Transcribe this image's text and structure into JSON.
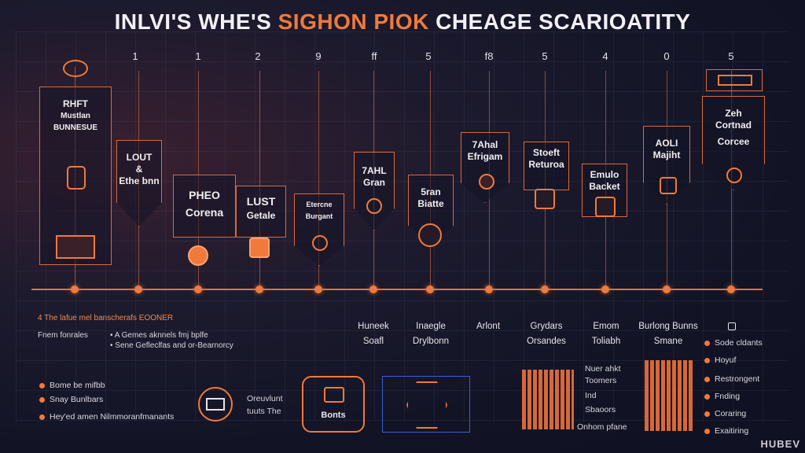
{
  "title": {
    "part1": "INLVI'S WHE'S ",
    "highlight": "SIGHON PIOK",
    "part2": " CHEAGE SCARIOATITY"
  },
  "timeline": {
    "numbers": [
      "1",
      "1",
      "2",
      "9",
      "ff",
      "5",
      "f8",
      "5",
      "4",
      "0",
      "5"
    ],
    "cards": [
      {
        "line1": "RHFT",
        "line2": "Mustlan",
        "line3": "BUNNESUE"
      },
      {
        "line1": "LOUT",
        "line2": "&",
        "line3": "Ethe bnn"
      },
      {
        "line1": "PHEO",
        "line2": "Corena"
      },
      {
        "line1": "LUST",
        "line2": "Getale"
      },
      {
        "line1": "Etercne",
        "line2": "Burgant"
      },
      {
        "line1": "7AHL",
        "line2": "Gran"
      },
      {
        "line1": "5ran",
        "line2": "Biatte"
      },
      {
        "line1": "7Ahal",
        "line2": "Efrigam"
      },
      {
        "line1": "Stoeft",
        "line2": "Returoa"
      },
      {
        "line1": "Emulo",
        "line2": "Backet"
      },
      {
        "line1": "AOLI",
        "line2": "Majiht"
      },
      {
        "line1": "Zeh",
        "line2": "Cortnad",
        "line3": "Corcee"
      }
    ],
    "below_labels": [
      {
        "line1": "Huneek",
        "line2": "Soafl"
      },
      {
        "line1": "Inaegle",
        "line2": "Drylbonn"
      },
      {
        "line1": "Arlont",
        "line2": ""
      },
      {
        "line1": "Grydars",
        "line2": "Orsandes"
      },
      {
        "line1": "Emom",
        "line2": "Toliabh"
      },
      {
        "line1": "Burlong Bunns",
        "line2": "Smane"
      }
    ]
  },
  "notes": {
    "header": "4 The lafue mel banscherafs EOONER",
    "left_label": "Fnem fonrales",
    "items": [
      "A Gemes aknnels fmj bplfe",
      "Sene Gefleclfas and or-Bearnorcy"
    ]
  },
  "bottom_left": [
    "Bome be mifbb",
    "Snay Bunlbars",
    "Hey'ed amen Nilmmoranfmanants"
  ],
  "center": {
    "caption1": "Oreuvlunt",
    "caption2": "tuuts The",
    "badge": "Bonts"
  },
  "list_mid": [
    "Nuer ahkt",
    "Toomers",
    "Ind",
    "Sbaoors",
    "Onhom pfane"
  ],
  "right_list": [
    "Sode cldants",
    "Hoyuf",
    "Restrongent",
    "Fnding",
    "Coraring",
    "Exaitiring"
  ],
  "logo": "HUBEV",
  "colors": {
    "accent": "#f07a3a",
    "background": "#121426"
  }
}
